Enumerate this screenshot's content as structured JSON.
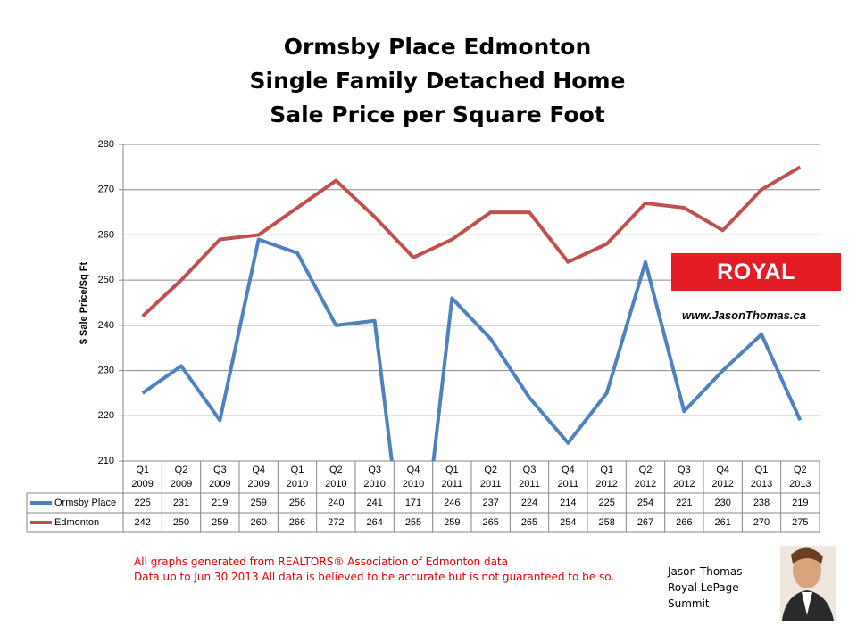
{
  "chart_data": {
    "type": "line",
    "title": "Ormsby Place Edmonton\nSingle Family Detached Home\nSale Price per Square Foot",
    "y_label": "$ Sale Price/Sq Ft",
    "categories": [
      "Q1\n2009",
      "Q2\n2009",
      "Q3\n2009",
      "Q4\n2009",
      "Q1\n2010",
      "Q2\n2010",
      "Q3\n2010",
      "Q4\n2010",
      "Q1\n2011",
      "Q2\n2011",
      "Q3\n2011",
      "Q4\n2011",
      "Q1\n2012",
      "Q2\n2012",
      "Q3\n2012",
      "Q4\n2012",
      "Q1\n2013",
      "Q2\n2013"
    ],
    "series": [
      {
        "name": "Ormsby Place",
        "color": "#4f81bd",
        "values": [
          225,
          231,
          219,
          259,
          256,
          240,
          241,
          171,
          246,
          237,
          224,
          214,
          225,
          254,
          221,
          230,
          238,
          219
        ]
      },
      {
        "name": "Edmonton",
        "color": "#c0504d",
        "values": [
          242,
          250,
          259,
          260,
          266,
          272,
          264,
          255,
          259,
          265,
          265,
          254,
          258,
          267,
          266,
          261,
          270,
          275
        ]
      }
    ],
    "ylim": [
      210,
      280
    ],
    "yticks": [
      210,
      220,
      230,
      240,
      250,
      260,
      270,
      280
    ],
    "grid": true,
    "notes": "All graphs generated from REALTORS® Association of Edmonton data\nData up to  Jun 30 2013  All data is believed to be accurate but is not guaranteed to be so.",
    "logo": {
      "brand": "ROYAL LePAGE",
      "url": "www.JasonThomas.ca"
    },
    "author": "Jason Thomas\nRoyal LePage\nSummit"
  }
}
